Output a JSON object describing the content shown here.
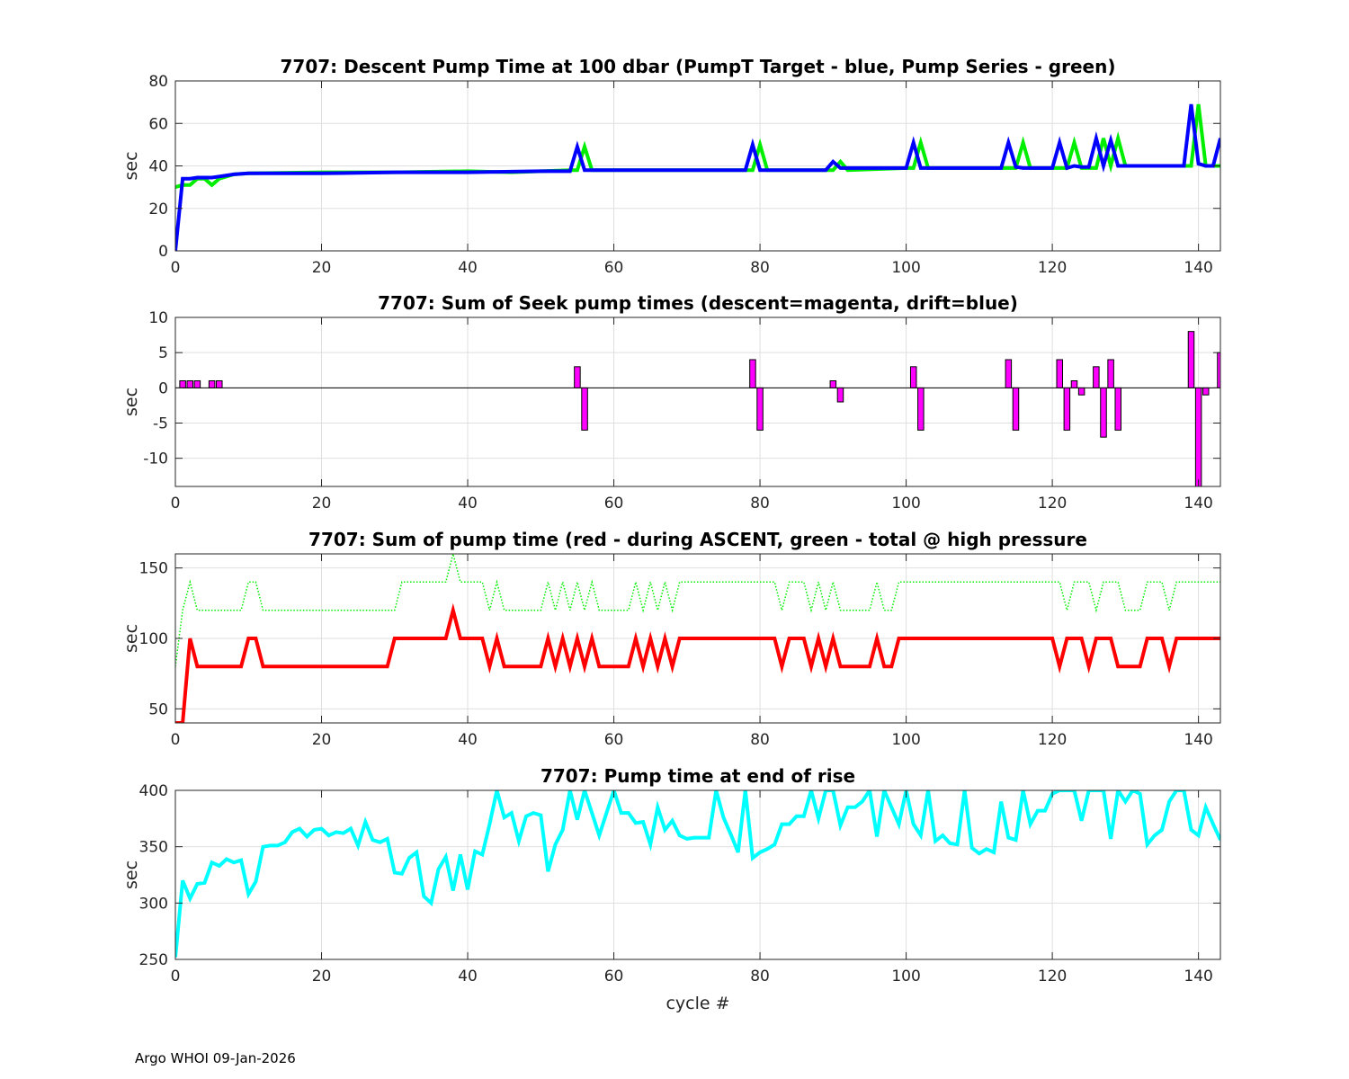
{
  "footer": "Argo WHOI 09-Jan-2026",
  "chart_data": [
    {
      "type": "line",
      "title": "7707: Descent Pump Time at 100 dbar (PumpT Target - blue, Pump Series - green)",
      "xlabel": "",
      "ylabel": "sec",
      "xlim": [
        0,
        143
      ],
      "ylim": [
        0,
        80
      ],
      "xticks": [
        0,
        20,
        40,
        60,
        80,
        100,
        120,
        140
      ],
      "yticks": [
        0,
        20,
        40,
        60,
        80
      ],
      "grid": true,
      "series": [
        {
          "name": "Pump Series",
          "color": "#00ee00",
          "style": "solid",
          "x": [
            0,
            1,
            2,
            3,
            4,
            5,
            6,
            7,
            8,
            10,
            20,
            30,
            40,
            46,
            54,
            55,
            56,
            57,
            58,
            60,
            70,
            78,
            79,
            80,
            81,
            82,
            88,
            89,
            90,
            91,
            92,
            100,
            101,
            102,
            103,
            104,
            110,
            114,
            115,
            116,
            117,
            120,
            121,
            122,
            123,
            124,
            125,
            126,
            127,
            128,
            129,
            130,
            131,
            132,
            138,
            139,
            140,
            141,
            142,
            143
          ],
          "values": [
            30,
            31,
            31,
            34,
            34,
            31,
            34,
            35,
            36,
            36.5,
            37,
            37,
            37.5,
            37,
            38,
            38,
            49,
            38,
            38,
            38,
            38,
            38,
            38,
            50,
            38,
            38,
            38,
            38,
            38,
            42,
            38,
            39,
            39,
            51,
            39,
            39,
            39,
            39,
            39,
            51,
            39,
            39,
            39,
            39,
            51,
            39,
            39,
            39,
            53,
            40,
            53,
            40,
            40,
            40,
            40,
            40,
            69,
            40,
            40,
            40
          ]
        },
        {
          "name": "PumpT Target",
          "color": "#0000ff",
          "style": "solid",
          "x": [
            0,
            1,
            2,
            3,
            5,
            6,
            7,
            8,
            10,
            20,
            30,
            40,
            50,
            54,
            55,
            56,
            58,
            60,
            70,
            78,
            79,
            80,
            81,
            82,
            88,
            89,
            90,
            91,
            92,
            100,
            101,
            102,
            103,
            104,
            110,
            113,
            114,
            115,
            116,
            117,
            120,
            121,
            122,
            123,
            124,
            125,
            126,
            127,
            128,
            129,
            130,
            131,
            132,
            138,
            139,
            140,
            141,
            142,
            143
          ],
          "values": [
            0,
            34,
            34,
            34.5,
            34.5,
            35,
            35.5,
            36,
            36.5,
            36.5,
            37,
            37,
            37.5,
            37.5,
            49,
            38,
            38,
            38,
            38,
            38,
            50,
            38,
            38,
            38,
            38,
            38,
            42,
            39,
            39,
            39,
            51,
            39,
            39,
            39,
            39,
            39,
            51,
            39.5,
            39,
            39,
            39,
            51,
            39,
            40,
            39.5,
            39.5,
            53,
            40,
            52,
            40,
            40,
            40,
            40,
            40,
            69,
            41,
            40,
            40,
            53
          ]
        }
      ]
    },
    {
      "type": "bar",
      "title": "7707: Sum of Seek pump times (descent=magenta, drift=blue)",
      "xlabel": "",
      "ylabel": "sec",
      "xlim": [
        0,
        143
      ],
      "ylim": [
        -14,
        10
      ],
      "xticks": [
        0,
        20,
        40,
        60,
        80,
        100,
        120,
        140
      ],
      "yticks": [
        -10,
        -5,
        0,
        5,
        10
      ],
      "grid": true,
      "series": [
        {
          "name": "descent",
          "color": "#ff00ff",
          "x": [
            1,
            2,
            3,
            5,
            6,
            55,
            56,
            79,
            80,
            90,
            91,
            101,
            102,
            114,
            115,
            121,
            122,
            123,
            124,
            126,
            127,
            128,
            129,
            139,
            140,
            141,
            143
          ],
          "values": [
            1,
            1,
            1,
            1,
            1,
            3,
            -6,
            4,
            -6,
            1,
            -2,
            3,
            -6,
            4,
            -6,
            4,
            -6,
            1,
            -1,
            3,
            -7,
            4,
            -6,
            8,
            -14,
            -1,
            5
          ]
        }
      ]
    },
    {
      "type": "line",
      "title": "7707: Sum of pump time (red - during ASCENT, green - total @ high pressure",
      "xlabel": "",
      "ylabel": "sec",
      "xlim": [
        0,
        143
      ],
      "ylim": [
        40,
        160
      ],
      "xticks": [
        0,
        20,
        40,
        60,
        80,
        100,
        120,
        140
      ],
      "yticks": [
        50,
        100,
        150
      ],
      "grid": true,
      "series": [
        {
          "name": "total @ high pressure",
          "color": "#00ee00",
          "style": "dotted",
          "x": [
            0,
            1,
            2,
            3,
            9,
            10,
            11,
            12,
            20,
            28,
            29,
            30,
            31,
            32,
            37,
            38,
            39,
            42,
            43,
            44,
            45,
            50,
            51,
            52,
            53,
            54,
            55,
            56,
            57,
            58,
            59,
            60,
            62,
            63,
            64,
            65,
            66,
            67,
            68,
            69,
            80,
            82,
            83,
            84,
            85,
            86,
            87,
            88,
            89,
            90,
            91,
            92,
            95,
            96,
            97,
            98,
            99,
            100,
            120,
            121,
            122,
            123,
            124,
            125,
            126,
            127,
            128,
            129,
            130,
            132,
            133,
            134,
            135,
            136,
            137,
            138,
            143
          ],
          "values": [
            80,
            120,
            140,
            120,
            120,
            140,
            140,
            120,
            120,
            120,
            120,
            120,
            140,
            140,
            140,
            160,
            140,
            140,
            120,
            140,
            120,
            120,
            140,
            120,
            140,
            120,
            140,
            120,
            140,
            120,
            120,
            120,
            120,
            140,
            120,
            140,
            120,
            140,
            120,
            140,
            140,
            140,
            120,
            140,
            140,
            140,
            120,
            140,
            120,
            140,
            120,
            120,
            120,
            140,
            120,
            120,
            140,
            140,
            140,
            140,
            120,
            140,
            140,
            140,
            120,
            140,
            140,
            140,
            120,
            120,
            140,
            140,
            140,
            120,
            140,
            140,
            140
          ]
        },
        {
          "name": "during ASCENT",
          "color": "#ff0000",
          "style": "solid",
          "x": [
            0,
            1,
            2,
            3,
            9,
            10,
            11,
            12,
            20,
            29,
            30,
            37,
            38,
            39,
            42,
            43,
            44,
            45,
            50,
            51,
            52,
            53,
            54,
            55,
            56,
            57,
            58,
            59,
            60,
            62,
            63,
            64,
            65,
            66,
            67,
            68,
            69,
            82,
            83,
            84,
            85,
            86,
            87,
            88,
            89,
            90,
            91,
            92,
            95,
            96,
            97,
            98,
            99,
            120,
            121,
            122,
            123,
            124,
            125,
            126,
            127,
            128,
            129,
            130,
            132,
            133,
            134,
            135,
            136,
            137,
            138,
            143
          ],
          "values": [
            40,
            40,
            100,
            80,
            80,
            100,
            100,
            80,
            80,
            80,
            100,
            100,
            120,
            100,
            100,
            80,
            100,
            80,
            80,
            100,
            80,
            100,
            80,
            100,
            80,
            100,
            80,
            80,
            80,
            80,
            100,
            80,
            100,
            80,
            100,
            80,
            100,
            100,
            80,
            100,
            100,
            100,
            80,
            100,
            80,
            100,
            80,
            80,
            80,
            100,
            80,
            80,
            100,
            100,
            80,
            100,
            100,
            100,
            80,
            100,
            100,
            100,
            80,
            80,
            80,
            100,
            100,
            100,
            80,
            100,
            100,
            100
          ]
        }
      ]
    },
    {
      "type": "line",
      "title": "7707: Pump time at end of rise",
      "xlabel": "cycle #",
      "ylabel": "sec",
      "xlim": [
        0,
        143
      ],
      "ylim": [
        250,
        400
      ],
      "xticks": [
        0,
        20,
        40,
        60,
        80,
        100,
        120,
        140
      ],
      "yticks": [
        250,
        300,
        350,
        400
      ],
      "grid": true,
      "series": [
        {
          "name": "Pump time at end of rise",
          "color": "#00ffff",
          "style": "solid",
          "x": [
            0,
            1,
            2,
            3,
            4,
            5,
            6,
            7,
            8,
            9,
            10,
            11,
            12,
            13,
            14,
            15,
            16,
            17,
            18,
            19,
            20,
            21,
            22,
            23,
            24,
            25,
            26,
            27,
            28,
            29,
            30,
            31,
            32,
            33,
            34,
            35,
            36,
            37,
            38,
            39,
            40,
            41,
            42,
            43,
            44,
            45,
            46,
            47,
            48,
            49,
            50,
            51,
            52,
            53,
            54,
            55,
            56,
            57,
            58,
            59,
            60,
            61,
            62,
            63,
            64,
            65,
            66,
            67,
            68,
            69,
            70,
            71,
            72,
            73,
            74,
            75,
            76,
            77,
            78,
            79,
            80,
            81,
            82,
            83,
            84,
            85,
            86,
            87,
            88,
            89,
            90,
            91,
            92,
            93,
            94,
            95,
            96,
            97,
            98,
            99,
            100,
            101,
            102,
            103,
            104,
            105,
            106,
            107,
            108,
            109,
            110,
            111,
            112,
            113,
            114,
            115,
            116,
            117,
            118,
            119,
            120,
            121,
            122,
            123,
            124,
            125,
            126,
            127,
            128,
            129,
            130,
            131,
            132,
            133,
            134,
            135,
            136,
            137,
            138,
            139,
            140,
            141,
            142,
            143
          ],
          "values": [
            252,
            320,
            304,
            317,
            318,
            336,
            333,
            339,
            336,
            338,
            308,
            319,
            350,
            351,
            351,
            354,
            363,
            366,
            359,
            365,
            366,
            360,
            363,
            362,
            366,
            351,
            372,
            356,
            354,
            357,
            327,
            326,
            340,
            345,
            306,
            300,
            330,
            341,
            311,
            343,
            312,
            346,
            343,
            370,
            400,
            376,
            380,
            355,
            377,
            380,
            378,
            328,
            352,
            365,
            400,
            374,
            400,
            380,
            360,
            380,
            400,
            380,
            380,
            371,
            372,
            352,
            385,
            365,
            373,
            360,
            357,
            358,
            358,
            358,
            400,
            376,
            361,
            345,
            400,
            340,
            345,
            348,
            352,
            370,
            370,
            377,
            377,
            400,
            375,
            400,
            400,
            369,
            385,
            385,
            390,
            400,
            359,
            400,
            385,
            370,
            400,
            370,
            360,
            400,
            355,
            360,
            353,
            352,
            400,
            349,
            344,
            348,
            345,
            390,
            358,
            356,
            400,
            370,
            382,
            382,
            397,
            400,
            400,
            400,
            373,
            400,
            400,
            400,
            357,
            400,
            390,
            400,
            397,
            352,
            360,
            365,
            390,
            400,
            400,
            365,
            360,
            385,
            370,
            356
          ]
        }
      ]
    }
  ]
}
